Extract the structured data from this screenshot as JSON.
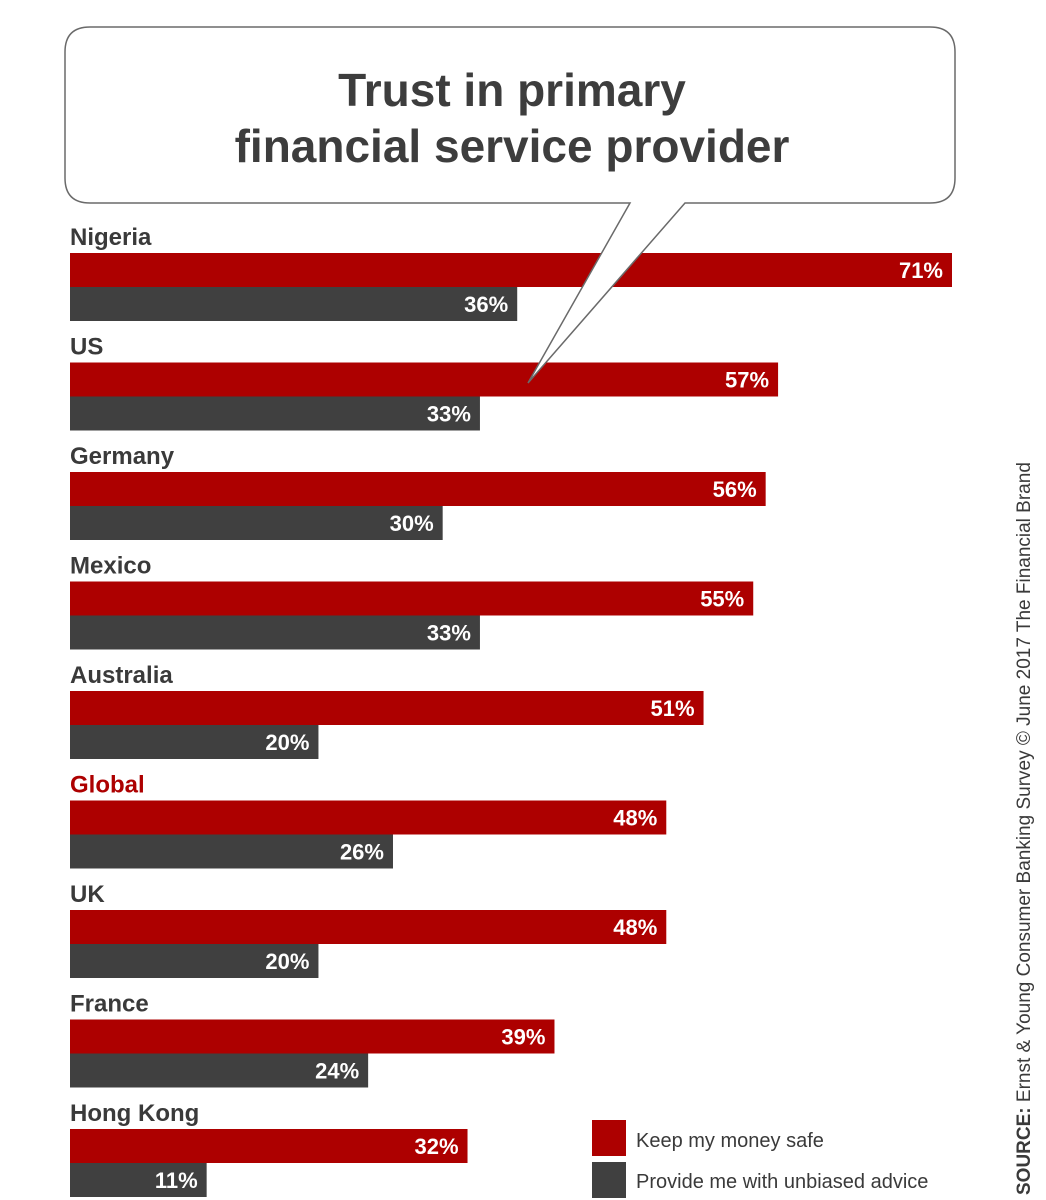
{
  "chart_data": {
    "type": "bar",
    "orientation": "horizontal",
    "title_lines": [
      "Trust in primary",
      "financial service provider"
    ],
    "categories": [
      "Nigeria",
      "US",
      "Germany",
      "Mexico",
      "Australia",
      "Global",
      "UK",
      "France",
      "Hong Kong"
    ],
    "highlight_category": "Global",
    "series": [
      {
        "name": "Keep my money safe",
        "color": "#ad0000",
        "values": [
          71,
          57,
          56,
          55,
          51,
          48,
          48,
          39,
          32
        ]
      },
      {
        "name": "Provide me with unbiased advice",
        "color": "#404040",
        "values": [
          36,
          33,
          30,
          33,
          20,
          26,
          20,
          24,
          11
        ]
      }
    ],
    "value_suffix": "%",
    "xlim": [
      0,
      71
    ],
    "legend_position": "bottom-right",
    "source_label": "SOURCE:",
    "source_text": " Ernst & Young Consumer Banking Survey © June 2017 The Financial Brand"
  }
}
